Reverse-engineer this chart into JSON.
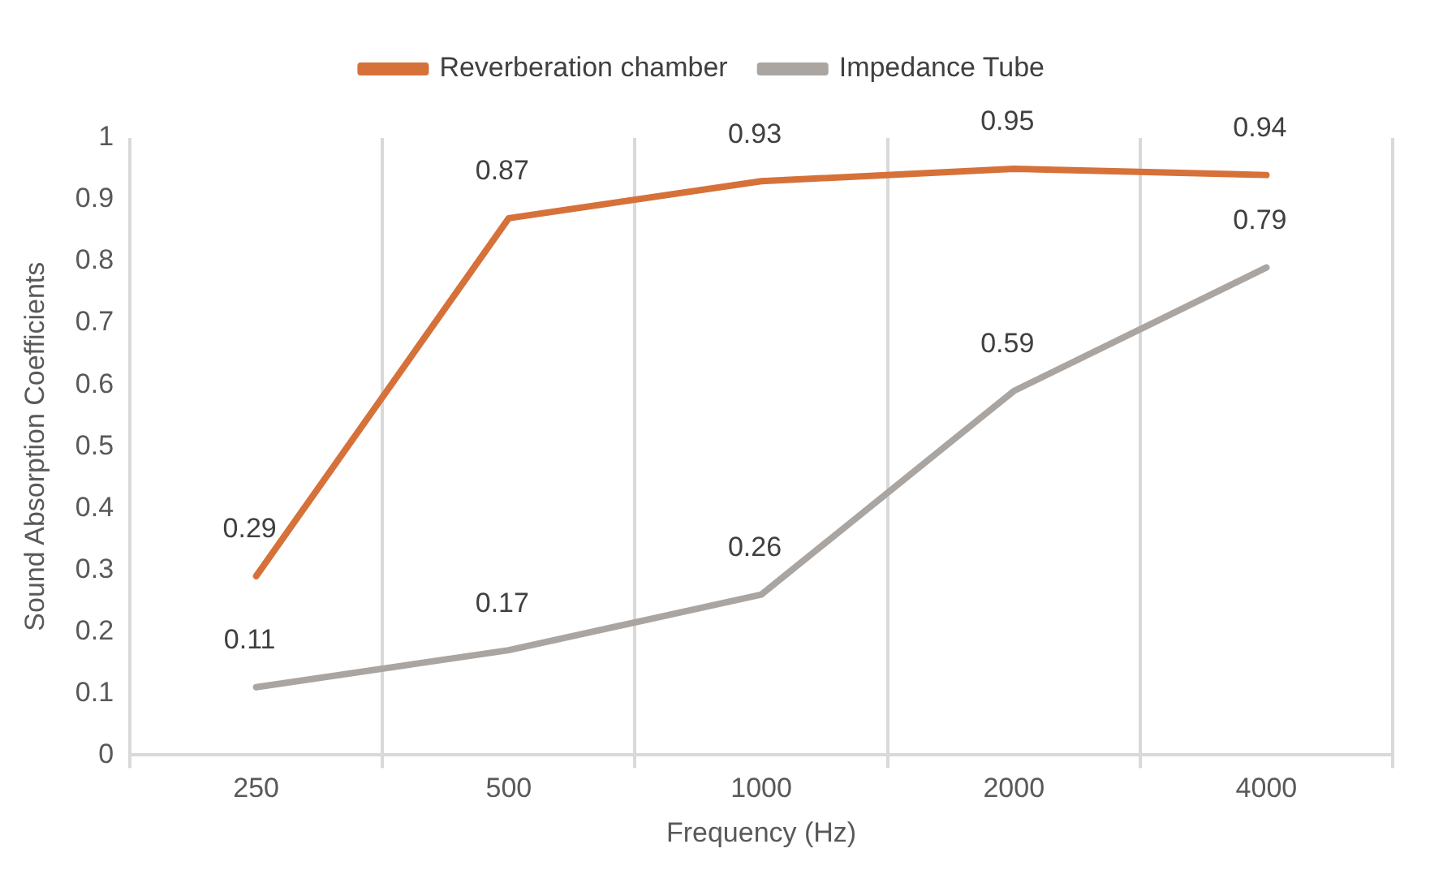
{
  "chart_data": {
    "type": "line",
    "xlabel": "Frequency (Hz)",
    "ylabel": "Sound Absorption Coefficients",
    "categories": [
      "250",
      "500",
      "1000",
      "2000",
      "4000"
    ],
    "series": [
      {
        "name": "Reverberation chamber",
        "color": "#d6713a",
        "values": [
          0.29,
          0.87,
          0.93,
          0.95,
          0.94
        ]
      },
      {
        "name": "Impedance Tube",
        "color": "#aaa5a1",
        "values": [
          0.11,
          0.17,
          0.26,
          0.59,
          0.79
        ]
      }
    ],
    "ylim": [
      0,
      1
    ],
    "yticks": [
      0,
      0.1,
      0.2,
      0.3,
      0.4,
      0.5,
      0.6,
      0.7,
      0.8,
      0.9,
      1
    ],
    "grid": "x",
    "legend": "top",
    "marker": "none",
    "line_style": "solid",
    "data_labels": true
  }
}
